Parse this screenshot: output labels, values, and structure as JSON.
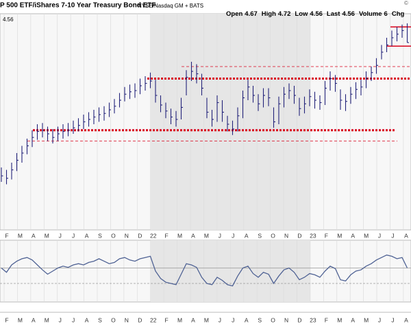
{
  "chart_data": {
    "type": "ohlc",
    "title": "P 500 ETF/iShares 7-10 Year Treasury Bond ETF",
    "exchange": "NYSE/Nasdaq GM + BATS",
    "copyright": "©",
    "price_label": 4.56,
    "quote": [
      {
        "label": "Open",
        "value": 4.67
      },
      {
        "label": "High",
        "value": 4.72
      },
      {
        "label": "Low",
        "value": 4.56
      },
      {
        "label": "Last",
        "value": 4.56
      },
      {
        "label": "Volume",
        "value": 6
      },
      {
        "label": "Chg"
      }
    ],
    "categories": [
      "F",
      "M",
      "A",
      "M",
      "J",
      "J",
      "A",
      "S",
      "O",
      "N",
      "D",
      "22",
      "F",
      "M",
      "A",
      "M",
      "J",
      "J",
      "A",
      "S",
      "O",
      "N",
      "D",
      "23",
      "F",
      "M",
      "A",
      "M",
      "J",
      "J",
      "A"
    ],
    "color": "#23237a",
    "ylim": [
      3.0,
      4.8
    ],
    "high": [
      3.52,
      3.5,
      3.56,
      3.64,
      3.7,
      3.76,
      3.83,
      3.88,
      3.89,
      3.86,
      3.84,
      3.86,
      3.88,
      3.89,
      3.91,
      3.93,
      3.96,
      3.98,
      4.0,
      4.02,
      4.03,
      4.06,
      4.09,
      4.14,
      4.19,
      4.21,
      4.22,
      4.26,
      4.28,
      4.31,
      4.25,
      4.12,
      4.06,
      4.01,
      3.99,
      4.1,
      4.33,
      4.4,
      4.38,
      4.3,
      4.1,
      4.0,
      4.12,
      4.08,
      3.95,
      3.91,
      4.02,
      4.16,
      4.25,
      4.2,
      4.13,
      4.18,
      4.18,
      4.02,
      4.11,
      4.19,
      4.22,
      4.2,
      4.1,
      4.11,
      4.17,
      4.15,
      4.12,
      4.24,
      4.32,
      4.29,
      4.17,
      4.13,
      4.19,
      4.23,
      4.25,
      4.32,
      4.36,
      4.43,
      4.54,
      4.6,
      4.66,
      4.69,
      4.71,
      4.72
    ],
    "low": [
      3.4,
      3.38,
      3.42,
      3.49,
      3.56,
      3.63,
      3.69,
      3.75,
      3.77,
      3.74,
      3.72,
      3.74,
      3.76,
      3.78,
      3.8,
      3.82,
      3.84,
      3.86,
      3.88,
      3.9,
      3.91,
      3.94,
      3.97,
      4.02,
      4.07,
      4.09,
      4.1,
      4.13,
      4.16,
      4.18,
      4.06,
      3.98,
      3.93,
      3.88,
      3.86,
      3.92,
      4.12,
      4.24,
      4.22,
      4.12,
      3.93,
      3.86,
      3.9,
      3.9,
      3.82,
      3.79,
      3.82,
      3.93,
      4.08,
      4.06,
      3.99,
      4.02,
      4.03,
      3.85,
      3.88,
      4.02,
      4.09,
      4.05,
      3.95,
      3.97,
      4.03,
      4.01,
      4.0,
      4.04,
      4.16,
      4.15,
      4.0,
      3.99,
      4.05,
      4.09,
      4.12,
      4.18,
      4.24,
      4.3,
      4.42,
      4.48,
      4.53,
      4.57,
      4.6,
      4.56
    ],
    "close": [
      3.45,
      3.43,
      3.5,
      3.58,
      3.64,
      3.7,
      3.77,
      3.82,
      3.83,
      3.8,
      3.77,
      3.8,
      3.82,
      3.83,
      3.85,
      3.87,
      3.9,
      3.92,
      3.94,
      3.96,
      3.97,
      4.0,
      4.03,
      4.08,
      4.13,
      4.15,
      4.16,
      4.2,
      4.22,
      4.24,
      4.12,
      4.04,
      3.99,
      3.94,
      3.92,
      4.02,
      4.27,
      4.32,
      4.3,
      4.18,
      3.98,
      3.92,
      4.06,
      3.98,
      3.88,
      3.84,
      3.95,
      4.1,
      4.19,
      4.12,
      4.05,
      4.12,
      4.1,
      3.9,
      4.05,
      4.13,
      4.16,
      4.12,
      4.01,
      4.05,
      4.11,
      4.08,
      4.06,
      4.18,
      4.26,
      4.22,
      4.08,
      4.07,
      4.13,
      4.17,
      4.19,
      4.26,
      4.31,
      4.37,
      4.48,
      4.54,
      4.6,
      4.63,
      4.66,
      4.56
    ],
    "levels": [
      {
        "value": 4.26,
        "color": "#d9001b",
        "style": "dotted"
      },
      {
        "value": 3.83,
        "color": "#d9001b",
        "style": "dotted"
      },
      {
        "value": 4.69,
        "color": "#d9001b",
        "style": "solid"
      },
      {
        "value": 4.53,
        "color": "#d9001b",
        "style": "solid"
      },
      {
        "value": 4.36,
        "color": "#d9001b",
        "style": "dashed"
      },
      {
        "value": 3.74,
        "color": "#d9001b",
        "style": "dashed"
      }
    ],
    "indicator": {
      "color": "#4f6294",
      "ylim": [
        0,
        100
      ],
      "levels": [
        55,
        30
      ],
      "values": [
        55,
        48,
        60,
        66,
        70,
        72,
        68,
        60,
        52,
        45,
        50,
        55,
        58,
        56,
        60,
        62,
        60,
        64,
        66,
        70,
        66,
        62,
        64,
        70,
        72,
        68,
        66,
        70,
        72,
        74,
        50,
        38,
        32,
        30,
        28,
        45,
        62,
        60,
        56,
        40,
        30,
        28,
        40,
        35,
        28,
        26,
        42,
        55,
        58,
        46,
        40,
        48,
        45,
        30,
        42,
        52,
        55,
        48,
        36,
        40,
        46,
        44,
        40,
        50,
        58,
        54,
        36,
        34,
        44,
        50,
        52,
        58,
        62,
        68,
        72,
        76,
        74,
        70,
        72,
        55
      ]
    }
  }
}
